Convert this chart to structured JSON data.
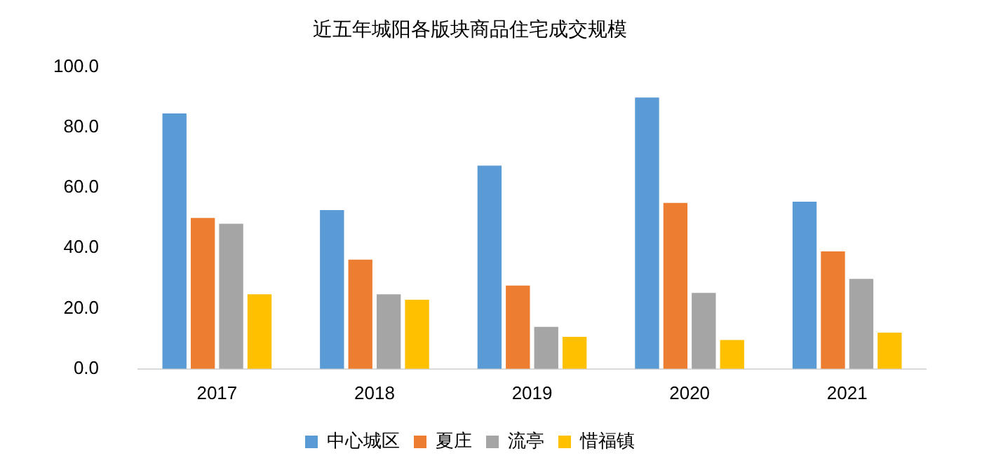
{
  "chart_data": {
    "type": "bar",
    "title": "近五年城阳各版块商品住宅成交规模",
    "categories": [
      "2017",
      "2018",
      "2019",
      "2020",
      "2021"
    ],
    "series": [
      {
        "name": "中心城区",
        "color": "#5b9bd5",
        "values": [
          84.6,
          52.6,
          67.3,
          89.9,
          55.4
        ]
      },
      {
        "name": "夏庄",
        "color": "#ed7d31",
        "values": [
          50.0,
          36.2,
          27.6,
          55.0,
          38.9
        ]
      },
      {
        "name": "流亭",
        "color": "#a5a5a5",
        "values": [
          48.1,
          24.7,
          13.9,
          25.2,
          29.8
        ]
      },
      {
        "name": "惜福镇",
        "color": "#ffc000",
        "values": [
          24.7,
          22.9,
          10.6,
          9.6,
          12.0
        ]
      }
    ],
    "ylim": [
      0,
      100
    ],
    "yticks": [
      {
        "value": 0,
        "label": "0.0"
      },
      {
        "value": 20,
        "label": "20.0"
      },
      {
        "value": 40,
        "label": "40.0"
      },
      {
        "value": 60,
        "label": "60.0"
      },
      {
        "value": 80,
        "label": "80.0"
      },
      {
        "value": 100,
        "label": "100.0"
      }
    ],
    "grid": false,
    "legend": "bottom"
  }
}
